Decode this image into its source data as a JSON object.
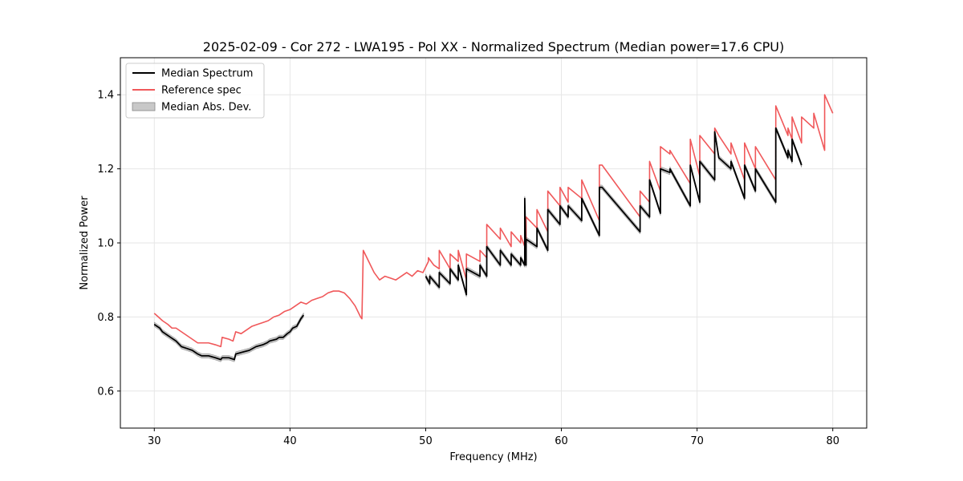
{
  "chart_data": {
    "type": "line",
    "title": "2025-02-09 - Cor 272 - LWA195 - Pol XX - Normalized Spectrum (Median power=17.6 CPU)",
    "xlabel": "Frequency (MHz)",
    "ylabel": "Normalized Power",
    "xlim": [
      27.5,
      82.5
    ],
    "ylim": [
      0.5,
      1.5
    ],
    "xticks": [
      30,
      40,
      50,
      60,
      70,
      80
    ],
    "xtick_labels": [
      "30",
      "40",
      "50",
      "60",
      "70",
      "80"
    ],
    "yticks": [
      0.6,
      0.8,
      1.0,
      1.2,
      1.4
    ],
    "ytick_labels": [
      "0.6",
      "0.8",
      "1.0",
      "1.2",
      "1.4"
    ],
    "grid": true,
    "legend_position": "top-left",
    "series": [
      {
        "name": "Median Spectrum",
        "color": "#000000",
        "x": [
          30,
          30.2,
          30.4,
          30.6,
          31,
          31.2,
          31.6,
          32,
          32.4,
          32.8,
          33.2,
          33.5,
          34,
          34.5,
          34.9,
          35,
          35.5,
          35.9,
          36,
          36.5,
          37,
          37.5,
          38,
          38.3,
          38.5,
          39,
          39.2,
          39.5,
          39.8,
          40,
          40.2,
          40.5,
          40.8,
          41
        ],
        "values": [
          0.78,
          0.775,
          0.77,
          0.76,
          0.75,
          0.745,
          0.735,
          0.72,
          0.715,
          0.71,
          0.7,
          0.695,
          0.695,
          0.69,
          0.685,
          0.69,
          0.69,
          0.685,
          0.7,
          0.705,
          0.71,
          0.72,
          0.725,
          0.73,
          0.735,
          0.74,
          0.745,
          0.745,
          0.755,
          0.76,
          0.77,
          0.775,
          0.795,
          0.805
        ]
      },
      {
        "name": "Median Spectrum (segment 2)",
        "color": "#000000",
        "x": [
          50,
          50.3,
          50.3,
          51,
          51,
          51.8,
          51.8,
          52.4,
          52.4,
          53,
          53,
          54,
          54,
          54.5,
          54.5,
          55.5,
          55.5,
          56.3,
          56.3,
          57,
          57,
          57.3,
          57.3,
          57.4,
          57.4,
          58.2,
          58.2,
          59,
          59,
          59.9,
          59.9,
          60.5,
          60.5,
          61.5,
          61.5,
          62.8,
          62.8,
          63,
          63,
          65.8,
          65.8,
          66.5,
          66.5,
          67.3,
          67.3,
          68,
          68,
          69.5,
          69.5,
          70.2,
          70.2,
          71.3,
          71.3,
          71.6,
          71.6,
          72.5,
          72.5,
          73.5,
          73.5,
          74.3,
          74.3,
          75.8,
          75.8,
          76.7,
          76.7,
          77,
          77,
          77.7
        ],
        "values": [
          0.91,
          0.89,
          0.91,
          0.88,
          0.92,
          0.89,
          0.93,
          0.9,
          0.94,
          0.86,
          0.93,
          0.91,
          0.94,
          0.91,
          0.99,
          0.94,
          0.98,
          0.94,
          0.97,
          0.94,
          0.96,
          0.94,
          1.12,
          0.94,
          1.01,
          0.99,
          1.04,
          0.98,
          1.09,
          1.05,
          1.1,
          1.07,
          1.1,
          1.06,
          1.12,
          1.02,
          1.15,
          1.15,
          1.15,
          1.03,
          1.1,
          1.07,
          1.17,
          1.08,
          1.2,
          1.19,
          1.2,
          1.1,
          1.21,
          1.11,
          1.22,
          1.17,
          1.3,
          1.23,
          1.23,
          1.2,
          1.22,
          1.12,
          1.21,
          1.14,
          1.2,
          1.11,
          1.31,
          1.23,
          1.25,
          1.22,
          1.28,
          1.21
        ]
      },
      {
        "name": "Reference spec",
        "color": "#f0585a",
        "x": [
          30,
          30.3,
          30.6,
          31,
          31.3,
          31.6,
          32,
          32.4,
          32.8,
          33.2,
          33.6,
          34,
          34.5,
          34.9,
          35,
          35.5,
          35.8,
          36,
          36.4,
          36.8,
          37.2,
          37.6,
          38,
          38.4,
          38.8,
          39.2,
          39.6,
          40,
          40.4,
          40.8,
          41.2,
          41.6,
          42,
          42.4,
          42.8,
          43.2,
          43.6,
          44,
          44.4,
          44.8,
          45.2,
          45.3,
          45.4,
          45.8,
          46.2,
          46.6,
          47,
          47.4,
          47.8,
          48.2,
          48.6,
          49,
          49.4,
          49.8,
          50.2,
          50.2,
          50.6,
          51,
          51,
          51.8,
          51.8,
          52.4,
          52.4,
          53,
          53,
          54,
          54,
          54.5,
          54.5,
          55.5,
          55.5,
          56.3,
          56.3,
          57,
          57,
          57.3,
          57.3,
          57.4,
          57.4,
          58.2,
          58.2,
          59,
          59,
          59.9,
          59.9,
          60.5,
          60.5,
          61.5,
          61.5,
          62.8,
          62.8,
          63,
          63,
          65.8,
          65.8,
          66.5,
          66.5,
          67.3,
          67.3,
          68,
          68,
          69.5,
          69.5,
          70.2,
          70.2,
          71.3,
          71.3,
          71.6,
          71.6,
          72.5,
          72.5,
          73.5,
          73.5,
          74.3,
          74.3,
          75.8,
          75.8,
          76.7,
          76.7,
          77,
          77,
          77.7,
          77.7,
          78.6,
          78.6,
          79.4,
          79.4,
          80
        ],
        "values": [
          0.81,
          0.8,
          0.79,
          0.78,
          0.77,
          0.77,
          0.76,
          0.75,
          0.74,
          0.73,
          0.73,
          0.73,
          0.725,
          0.72,
          0.745,
          0.74,
          0.735,
          0.76,
          0.755,
          0.765,
          0.775,
          0.78,
          0.785,
          0.79,
          0.8,
          0.805,
          0.815,
          0.82,
          0.83,
          0.84,
          0.835,
          0.845,
          0.85,
          0.855,
          0.865,
          0.87,
          0.87,
          0.865,
          0.85,
          0.83,
          0.8,
          0.795,
          0.98,
          0.95,
          0.92,
          0.9,
          0.91,
          0.905,
          0.9,
          0.91,
          0.92,
          0.91,
          0.925,
          0.92,
          0.95,
          0.96,
          0.94,
          0.93,
          0.98,
          0.93,
          0.97,
          0.95,
          0.98,
          0.9,
          0.97,
          0.95,
          0.98,
          0.96,
          1.05,
          1.01,
          1.04,
          0.99,
          1.03,
          1.0,
          1.02,
          0.99,
          1.1,
          0.99,
          1.07,
          1.04,
          1.09,
          1.03,
          1.14,
          1.1,
          1.15,
          1.11,
          1.15,
          1.12,
          1.17,
          1.06,
          1.21,
          1.21,
          1.21,
          1.07,
          1.14,
          1.11,
          1.22,
          1.14,
          1.26,
          1.24,
          1.25,
          1.16,
          1.28,
          1.18,
          1.29,
          1.24,
          1.31,
          1.29,
          1.29,
          1.24,
          1.27,
          1.17,
          1.27,
          1.2,
          1.26,
          1.17,
          1.37,
          1.29,
          1.31,
          1.28,
          1.34,
          1.27,
          1.34,
          1.31,
          1.35,
          1.25,
          1.4,
          1.35
        ]
      }
    ],
    "bands": [
      {
        "name": "Median Abs. Dev.",
        "color": "#c8c8c8",
        "edge": "#888888"
      }
    ],
    "legend": [
      {
        "label": "Median Spectrum",
        "kind": "line",
        "color": "#000000"
      },
      {
        "label": "Reference spec",
        "kind": "line",
        "color": "#f0585a"
      },
      {
        "label": "Median Abs. Dev.",
        "kind": "patch",
        "color": "#c8c8c8"
      }
    ]
  }
}
